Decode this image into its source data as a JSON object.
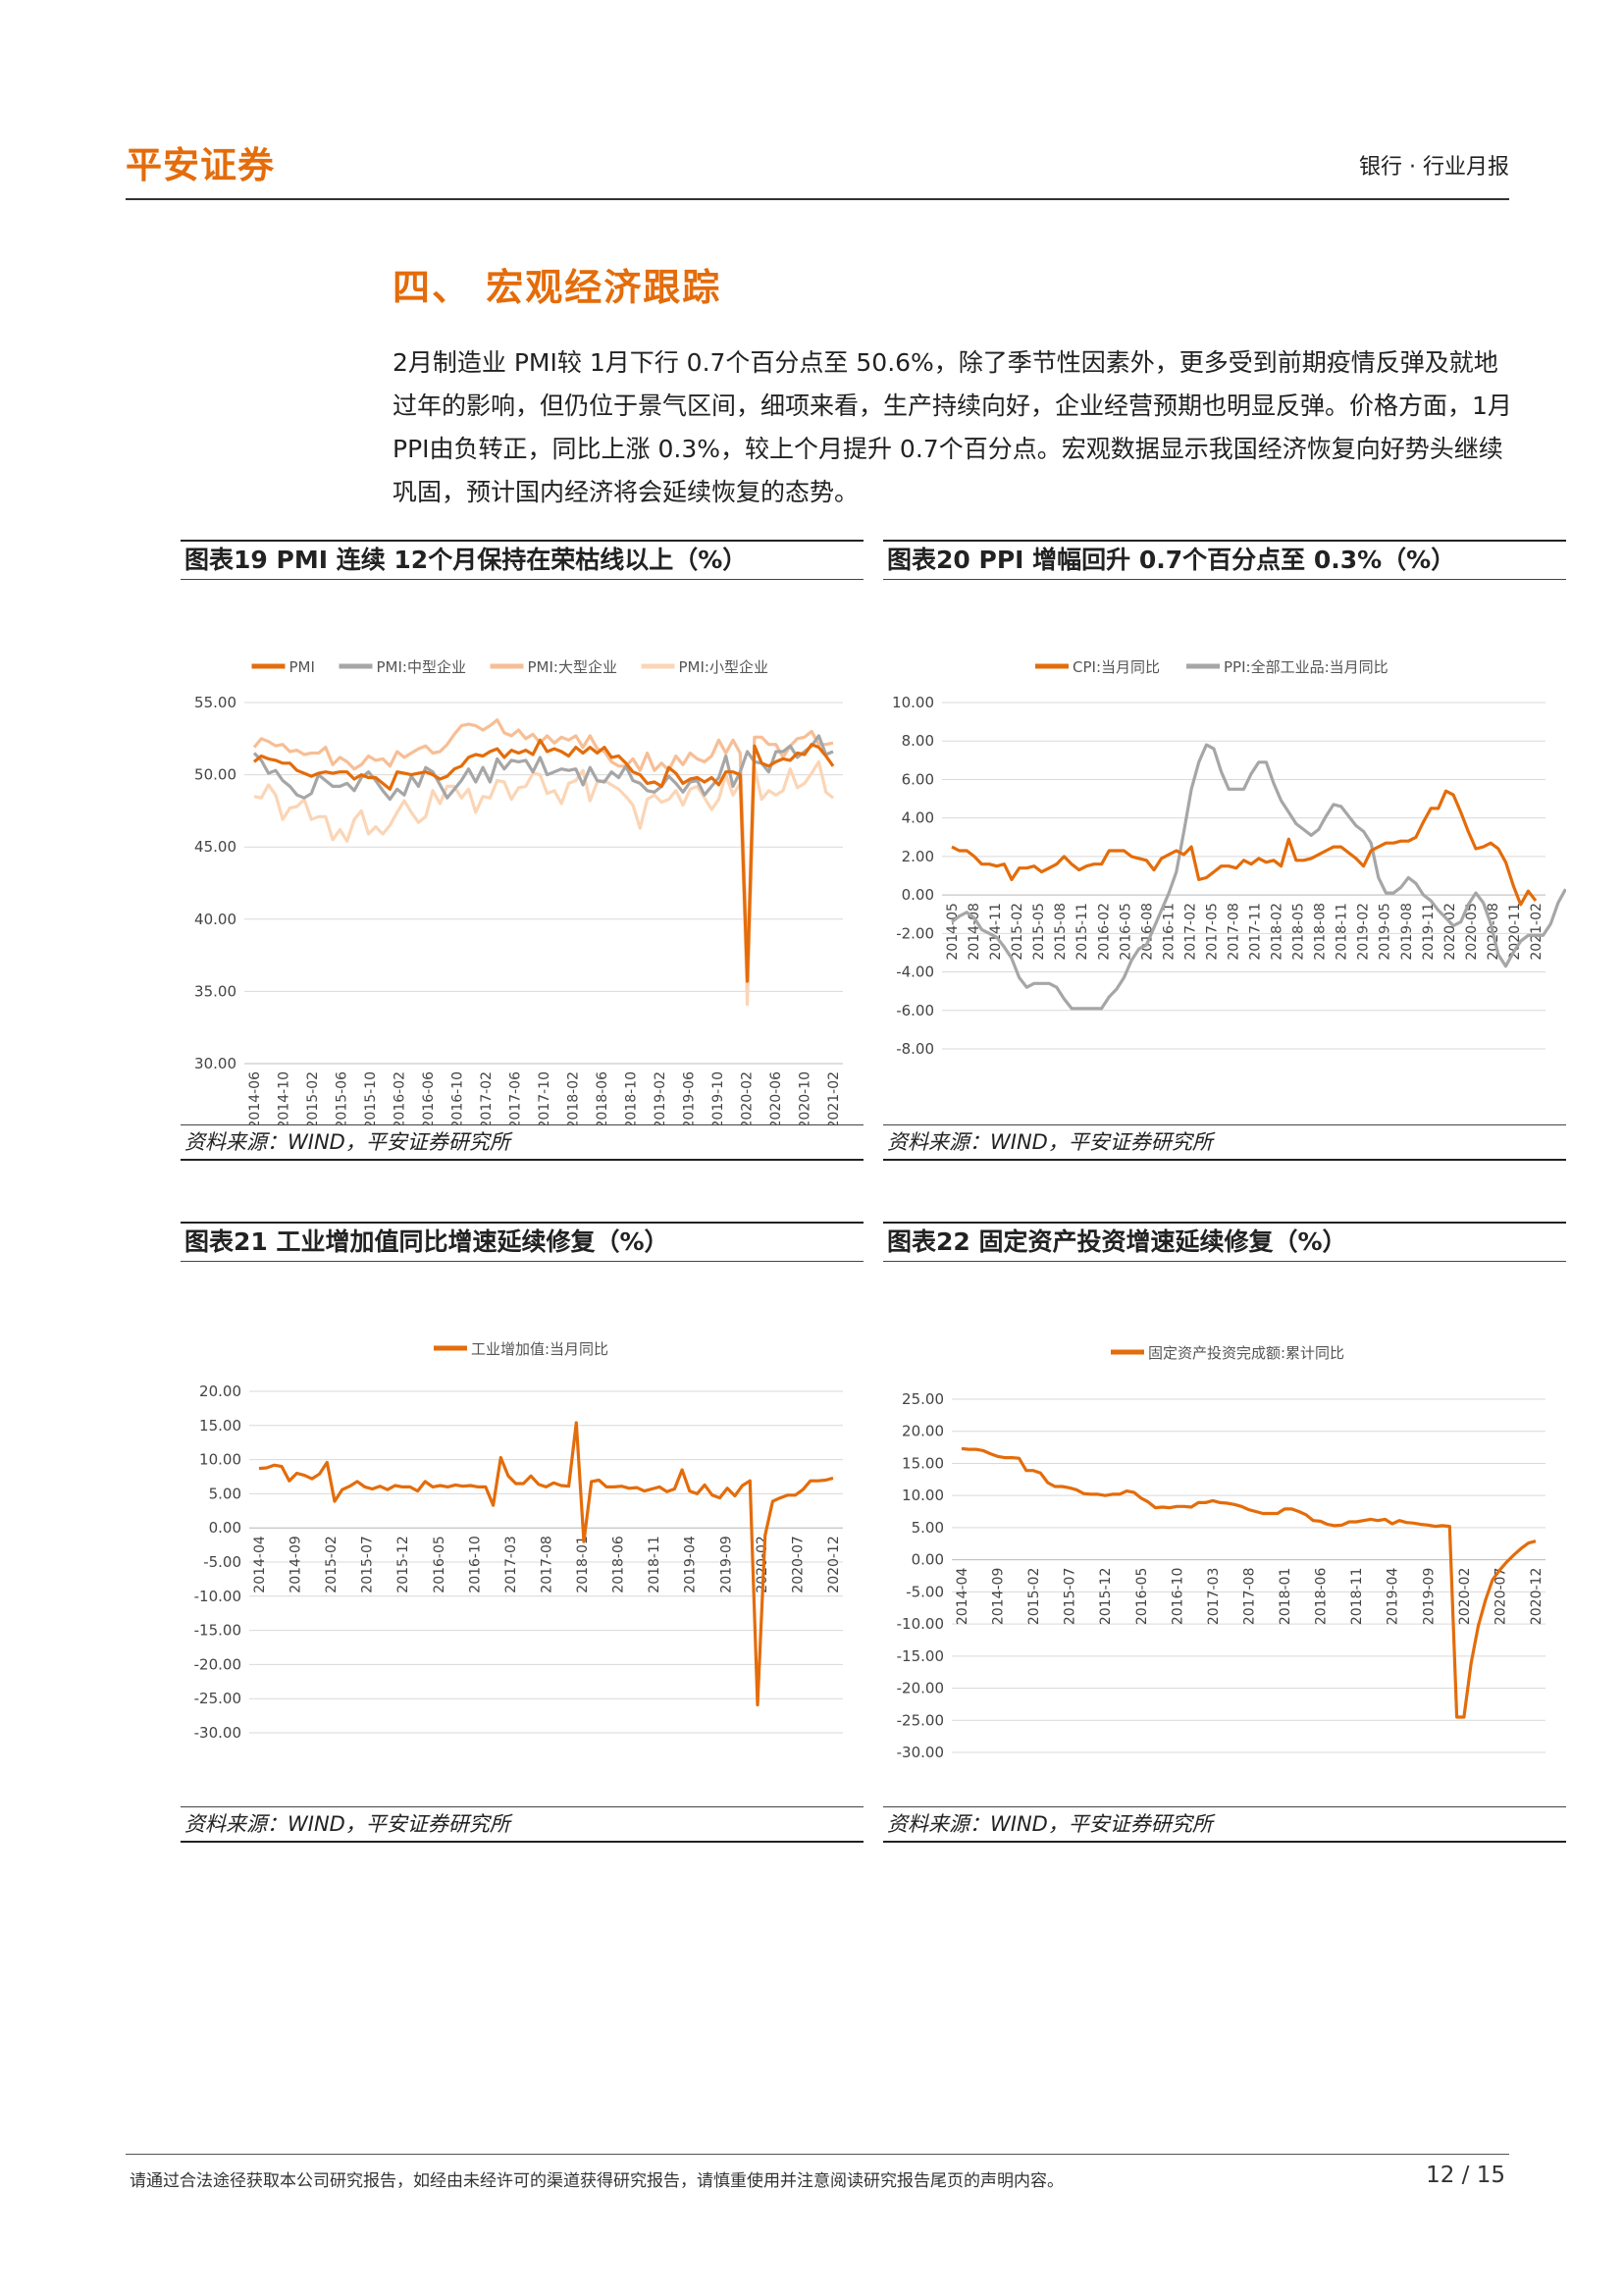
{
  "header": {
    "logo": "平安证券",
    "report_type": "银行 · 行业月报"
  },
  "section": {
    "title": "四、  宏观经济跟踪",
    "paragraph": "2月制造业 PMI较 1月下行 0.7个百分点至 50.6%，除了季节性因素外，更多受到前期疫情反弹及就地过年的影响，但仍位于景气区间，细项来看，生产持续向好，企业经营预期也明显反弹。价格方面，1月 PPI由负转正，同比上涨 0.3%，较上个月提升 0.7个百分点。宏观数据显示我国经济恢复向好势头继续巩固，预计国内经济将会延续恢复的态势。"
  },
  "charts": {
    "c19": {
      "title": "图表19   PMI 连续 12个月保持在荣枯线以上（%）",
      "source": "资料来源：WIND，平安证券研究所"
    },
    "c20": {
      "title": "图表20   PPI 增幅回升 0.7个百分点至 0.3%（%）",
      "source": "资料来源：WIND，平安证券研究所"
    },
    "c21": {
      "title": "图表21   工业增加值同比增速延续修复（%）",
      "source": "资料来源：WIND，平安证券研究所"
    },
    "c22": {
      "title": "图表22   固定资产投资增速延续修复（%）",
      "source": "资料来源：WIND，平安证券研究所"
    }
  },
  "chart_data": [
    {
      "id": "c19",
      "type": "line",
      "x_ticks": [
        "2014-06",
        "2014-10",
        "2015-02",
        "2015-06",
        "2015-10",
        "2016-02",
        "2016-06",
        "2016-10",
        "2017-02",
        "2017-06",
        "2017-10",
        "2018-02",
        "2018-06",
        "2018-10",
        "2019-02",
        "2019-06",
        "2019-10",
        "2020-02",
        "2020-06",
        "2020-10",
        "2021-02"
      ],
      "ylim": [
        30,
        55
      ],
      "y_ticks": [
        "55.00",
        "50.00",
        "45.00",
        "40.00",
        "35.00",
        "30.00"
      ],
      "legend_position": "top",
      "series": [
        {
          "name": "PMI",
          "color": "#e46c0a",
          "values": [
            50.9,
            51.3,
            51.1,
            51.0,
            50.8,
            50.8,
            50.3,
            50.1,
            49.9,
            50.1,
            50.2,
            50.1,
            50.2,
            50.2,
            49.7,
            50.0,
            49.8,
            49.8,
            49.4,
            49.0,
            50.2,
            50.1,
            50.0,
            50.1,
            50.2,
            50.0,
            49.7,
            49.9,
            50.4,
            50.6,
            51.2,
            51.4,
            51.3,
            51.6,
            51.8,
            51.2,
            51.7,
            51.5,
            51.7,
            51.4,
            52.4,
            51.6,
            51.8,
            51.6,
            51.3,
            51.9,
            51.5,
            51.9,
            51.5,
            51.9,
            51.2,
            51.3,
            50.8,
            50.2,
            50.0,
            49.4,
            49.5,
            49.2,
            50.5,
            50.1,
            49.4,
            49.7,
            49.8,
            49.5,
            49.8,
            49.3,
            50.2,
            50.2,
            50.0,
            35.7,
            52.0,
            50.8,
            50.6,
            50.9,
            51.1,
            51.0,
            51.5,
            51.4,
            52.1,
            51.9,
            51.3,
            50.6
          ]
        },
        {
          "name": "PMI:中型企业",
          "color": "#a6a6a6",
          "values": [
            51.5,
            51.0,
            50.1,
            50.3,
            49.6,
            49.2,
            48.6,
            48.4,
            48.7,
            50.0,
            49.6,
            49.2,
            49.2,
            49.4,
            48.9,
            49.8,
            50.2,
            49.6,
            48.9,
            48.3,
            49.0,
            48.6,
            49.9,
            49.2,
            50.5,
            50.2,
            49.3,
            48.4,
            49.0,
            49.6,
            50.4,
            49.5,
            50.5,
            49.5,
            51.1,
            50.4,
            51.0,
            50.9,
            51.0,
            50.2,
            51.2,
            50.0,
            50.2,
            50.4,
            50.3,
            50.4,
            49.3,
            50.5,
            49.6,
            49.5,
            50.2,
            49.8,
            50.6,
            49.6,
            49.4,
            48.9,
            48.8,
            49.2,
            49.9,
            49.4,
            48.8,
            49.5,
            49.6,
            48.6,
            49.2,
            49.8,
            51.3,
            49.2,
            50.2,
            51.6,
            50.9,
            50.8,
            50.2,
            51.6,
            51.6,
            52.0,
            51.2,
            51.6,
            52.0,
            52.7,
            51.4,
            51.6
          ]
        },
        {
          "name": "PMI:大型企业",
          "color": "#f7be95",
          "values": [
            51.9,
            52.5,
            52.3,
            52.0,
            52.1,
            51.6,
            51.7,
            51.4,
            51.5,
            51.5,
            51.9,
            50.7,
            51.2,
            50.9,
            50.4,
            50.7,
            51.3,
            51.0,
            51.1,
            50.6,
            51.6,
            51.2,
            51.5,
            51.8,
            52.0,
            51.5,
            51.6,
            52.1,
            52.8,
            53.4,
            53.5,
            53.4,
            53.1,
            53.4,
            53.8,
            52.9,
            52.7,
            53.1,
            52.5,
            52.8,
            52.2,
            52.7,
            52.2,
            52.6,
            52.4,
            52.7,
            51.9,
            52.7,
            51.8,
            51.6,
            50.9,
            50.6,
            50.6,
            51.1,
            50.3,
            51.5,
            50.3,
            50.8,
            50.3,
            51.3,
            50.7,
            51.5,
            51.1,
            50.9,
            51.3,
            52.4,
            51.5,
            52.4,
            51.5,
            36.6,
            52.6,
            52.6,
            52.1,
            52.1,
            51.2,
            52.0,
            52.5,
            52.6,
            53.0,
            52.1,
            52.1,
            52.2
          ]
        },
        {
          "name": "PMI:小型企业",
          "color": "#fbd5b5",
          "values": [
            48.5,
            48.4,
            49.3,
            48.6,
            46.9,
            47.7,
            47.8,
            48.3,
            46.9,
            47.1,
            47.1,
            45.5,
            46.2,
            45.4,
            46.9,
            47.5,
            45.9,
            46.4,
            45.9,
            46.5,
            47.4,
            48.2,
            47.4,
            46.7,
            47.1,
            48.9,
            48.0,
            49.2,
            49.2,
            48.4,
            49.0,
            47.4,
            48.5,
            48.4,
            49.6,
            49.5,
            48.3,
            49.1,
            49.2,
            50.1,
            50.0,
            48.7,
            48.9,
            48.0,
            49.4,
            49.6,
            50.3,
            48.2,
            49.5,
            49.6,
            49.3,
            49.0,
            48.5,
            47.9,
            46.3,
            48.3,
            48.6,
            48.1,
            48.3,
            48.9,
            47.9,
            49.0,
            49.2,
            48.4,
            47.6,
            48.3,
            50.0,
            48.6,
            49.4,
            34.1,
            50.5,
            48.3,
            48.9,
            48.6,
            48.9,
            50.4,
            49.1,
            49.4,
            50.1,
            50.9,
            48.8,
            48.4
          ]
        }
      ]
    },
    {
      "id": "c20",
      "type": "line",
      "x_ticks": [
        "2014-05",
        "2014-08",
        "2014-11",
        "2015-02",
        "2015-05",
        "2015-08",
        "2015-11",
        "2016-02",
        "2016-05",
        "2016-08",
        "2016-11",
        "2017-02",
        "2017-05",
        "2017-08",
        "2017-11",
        "2018-02",
        "2018-05",
        "2018-08",
        "2018-11",
        "2019-02",
        "2019-05",
        "2019-08",
        "2019-11",
        "2020-02",
        "2020-05",
        "2020-08",
        "2020-11",
        "2021-02"
      ],
      "ylim": [
        -8,
        10
      ],
      "y_ticks": [
        "10.00",
        "8.00",
        "6.00",
        "4.00",
        "2.00",
        "0.00",
        "-2.00",
        "-4.00",
        "-6.00",
        "-8.00"
      ],
      "legend_position": "top",
      "series": [
        {
          "name": "CPI:当月同比",
          "color": "#e46c0a",
          "values": [
            2.5,
            2.3,
            2.3,
            2.0,
            1.6,
            1.6,
            1.5,
            1.6,
            0.8,
            1.4,
            1.4,
            1.5,
            1.2,
            1.4,
            1.6,
            2.0,
            1.6,
            1.3,
            1.5,
            1.6,
            1.6,
            2.3,
            2.3,
            2.3,
            2.0,
            1.9,
            1.8,
            1.3,
            1.9,
            2.1,
            2.3,
            2.1,
            2.5,
            0.8,
            0.9,
            1.2,
            1.5,
            1.5,
            1.4,
            1.8,
            1.6,
            1.9,
            1.7,
            1.8,
            1.5,
            2.9,
            1.8,
            1.8,
            1.9,
            2.1,
            2.3,
            2.5,
            2.5,
            2.2,
            1.9,
            1.5,
            2.3,
            2.5,
            2.7,
            2.7,
            2.8,
            2.8,
            3.0,
            3.8,
            4.5,
            4.5,
            5.4,
            5.2,
            4.3,
            3.3,
            2.4,
            2.5,
            2.7,
            2.4,
            1.7,
            0.5,
            -0.5,
            0.2,
            -0.3
          ]
        },
        {
          "name": "PPI:全部工业品:当月同比",
          "color": "#a6a6a6",
          "values": [
            -1.4,
            -1.1,
            -0.9,
            -1.2,
            -1.8,
            -2.0,
            -2.2,
            -2.7,
            -3.3,
            -4.3,
            -4.8,
            -4.6,
            -4.6,
            -4.6,
            -4.8,
            -5.4,
            -5.9,
            -5.9,
            -5.9,
            -5.9,
            -5.9,
            -5.3,
            -4.9,
            -4.3,
            -3.4,
            -2.8,
            -2.6,
            -1.7,
            -0.8,
            0.1,
            1.2,
            3.3,
            5.5,
            6.9,
            7.8,
            7.6,
            6.4,
            5.5,
            5.5,
            5.5,
            6.3,
            6.9,
            6.9,
            5.8,
            4.9,
            4.3,
            3.7,
            3.4,
            3.1,
            3.4,
            4.1,
            4.7,
            4.6,
            4.1,
            3.6,
            3.3,
            2.7,
            0.9,
            0.1,
            0.1,
            0.4,
            0.9,
            0.6,
            0.0,
            -0.3,
            -0.8,
            -1.2,
            -1.6,
            -1.4,
            -0.5,
            0.1,
            -0.4,
            -1.5,
            -3.1,
            -3.7,
            -3.0,
            -2.4,
            -2.1,
            -2.1,
            -2.1,
            -1.5,
            -0.4,
            0.3
          ]
        }
      ]
    },
    {
      "id": "c21",
      "type": "line",
      "x_ticks": [
        "2014-04",
        "2014-09",
        "2015-02",
        "2015-07",
        "2015-12",
        "2016-05",
        "2016-10",
        "2017-03",
        "2017-08",
        "2018-01",
        "2018-06",
        "2018-11",
        "2019-04",
        "2019-09",
        "2020-02",
        "2020-07",
        "2020-12"
      ],
      "ylim": [
        -30,
        20
      ],
      "y_ticks": [
        "20.00",
        "15.00",
        "10.00",
        "5.00",
        "0.00",
        "-5.00",
        "-10.00",
        "-15.00",
        "-20.00",
        "-25.00",
        "-30.00"
      ],
      "legend_position": "top",
      "series": [
        {
          "name": "工业增加值:当月同比",
          "color": "#e46c0a",
          "values": [
            8.7,
            8.8,
            9.2,
            9.0,
            6.9,
            8.0,
            7.7,
            7.2,
            7.9,
            9.6,
            3.9,
            5.6,
            6.1,
            6.8,
            6.0,
            5.7,
            6.1,
            5.6,
            6.2,
            6.0,
            6.0,
            5.4,
            6.8,
            6.0,
            6.2,
            6.0,
            6.3,
            6.1,
            6.2,
            6.0,
            6.0,
            3.3,
            10.3,
            7.6,
            6.5,
            6.5,
            7.6,
            6.4,
            6.0,
            6.6,
            6.2,
            6.1,
            15.4,
            -2.0,
            6.8,
            7.0,
            6.0,
            6.0,
            6.1,
            5.8,
            5.9,
            5.4,
            5.7,
            6.0,
            5.3,
            5.7,
            8.5,
            5.4,
            5.0,
            6.3,
            4.8,
            4.4,
            5.8,
            4.7,
            6.2,
            6.9,
            -25.9,
            -1.1,
            3.9,
            4.4,
            4.8,
            4.8,
            5.6,
            6.9,
            6.9,
            7.0,
            7.3
          ]
        }
      ]
    },
    {
      "id": "c22",
      "type": "line",
      "x_ticks": [
        "2014-04",
        "2014-09",
        "2015-02",
        "2015-07",
        "2015-12",
        "2016-05",
        "2016-10",
        "2017-03",
        "2017-08",
        "2018-01",
        "2018-06",
        "2018-11",
        "2019-04",
        "2019-09",
        "2020-02",
        "2020-07",
        "2020-12"
      ],
      "ylim": [
        -30,
        25
      ],
      "y_ticks": [
        "25.00",
        "20.00",
        "15.00",
        "10.00",
        "5.00",
        "0.00",
        "-5.00",
        "-10.00",
        "-15.00",
        "-20.00",
        "-25.00",
        "-30.00"
      ],
      "legend_position": "top",
      "series": [
        {
          "name": "固定资产投资完成额:累计同比",
          "color": "#e46c0a",
          "values": [
            17.3,
            17.2,
            17.2,
            17.0,
            16.5,
            16.1,
            15.9,
            15.9,
            15.8,
            13.9,
            13.9,
            13.5,
            12.0,
            11.4,
            11.4,
            11.2,
            10.9,
            10.3,
            10.2,
            10.2,
            10.0,
            10.2,
            10.2,
            10.7,
            10.5,
            9.6,
            9.0,
            8.1,
            8.2,
            8.1,
            8.3,
            8.3,
            8.2,
            8.9,
            8.9,
            9.2,
            8.9,
            8.8,
            8.6,
            8.3,
            7.8,
            7.5,
            7.2,
            7.2,
            7.2,
            7.9,
            7.9,
            7.5,
            7.0,
            6.1,
            6.0,
            5.5,
            5.3,
            5.4,
            5.9,
            5.9,
            6.1,
            6.3,
            6.1,
            6.3,
            5.6,
            6.1,
            5.8,
            5.7,
            5.5,
            5.4,
            5.2,
            5.3,
            5.2,
            -24.5,
            -24.5,
            -16.1,
            -10.3,
            -6.3,
            -3.1,
            -1.6,
            -0.3,
            0.8,
            1.8,
            2.6,
            2.9
          ]
        }
      ]
    }
  ]
}
